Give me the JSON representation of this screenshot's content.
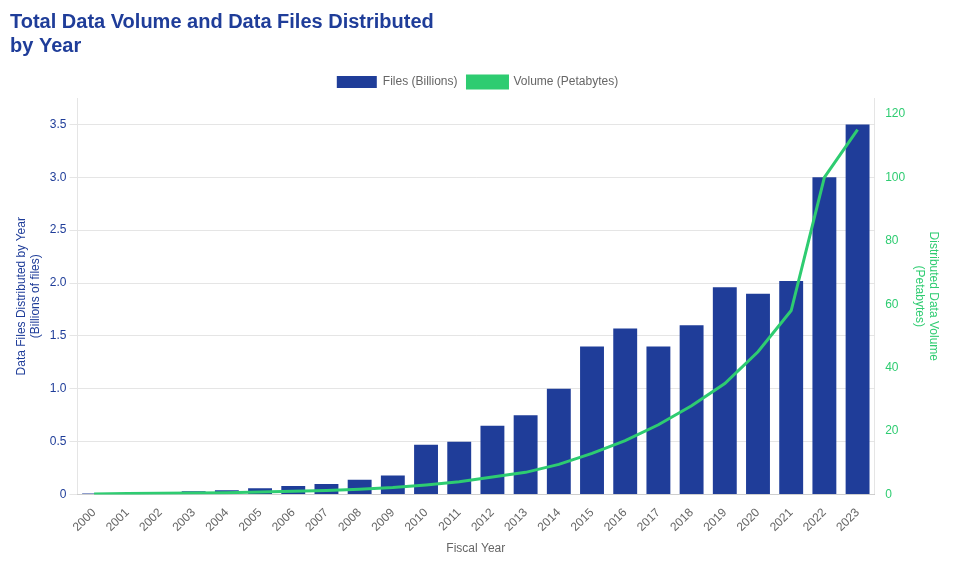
{
  "chart_data": {
    "type": "bar",
    "title": [
      "Total Data Volume and Data Files Distributed",
      "by Year"
    ],
    "xlabel": "Fiscal Year",
    "ylabel": "Data Files Distributed by Year\n(Billions of files)",
    "y2label": "Distributed Data Volume\n(Petabytes)",
    "categories": [
      "2000",
      "2001",
      "2002",
      "2003",
      "2004",
      "2005",
      "2006",
      "2007",
      "2008",
      "2009",
      "2010",
      "2011",
      "2012",
      "2013",
      "2014",
      "2015",
      "2016",
      "2017",
      "2018",
      "2019",
      "2020",
      "2021",
      "2022",
      "2023"
    ],
    "series": [
      {
        "name": "Files (Billions)",
        "type": "bar",
        "color": "#1f3d99",
        "values": [
          0.01,
          0.01,
          0.02,
          0.03,
          0.04,
          0.06,
          0.08,
          0.1,
          0.14,
          0.18,
          0.47,
          0.5,
          0.65,
          0.75,
          1.0,
          1.4,
          1.57,
          1.4,
          1.6,
          1.96,
          1.9,
          2.02,
          3.0,
          3.5
        ]
      },
      {
        "name": "Volume (Petabytes)",
        "type": "line",
        "color": "#2ecc71",
        "axis": "y2",
        "values": [
          0.2,
          0.3,
          0.4,
          0.5,
          0.6,
          0.8,
          1.0,
          1.3,
          1.7,
          2.2,
          3.0,
          4.0,
          5.5,
          7.0,
          9.5,
          13.0,
          17.0,
          22.0,
          28.0,
          35.0,
          45.0,
          58.0,
          100.0,
          115.0
        ]
      }
    ],
    "ylim": [
      0,
      3.75
    ],
    "yticks": [
      0,
      0.5,
      {
        "value": 1,
        "label": "1.0"
      },
      1.5,
      {
        "value": 2,
        "label": "2.0"
      },
      2.5,
      {
        "value": 3,
        "label": "3.0"
      },
      3.5
    ],
    "y2lim": [
      0,
      125
    ],
    "y2ticks": [
      0,
      20,
      40,
      60,
      80,
      100,
      120
    ],
    "grid": true,
    "legend": "top"
  }
}
